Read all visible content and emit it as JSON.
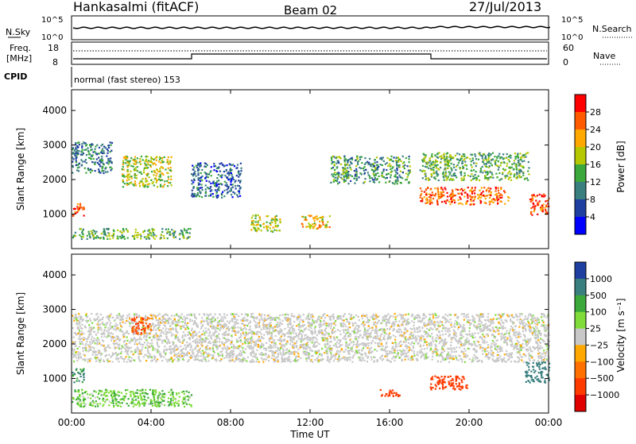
{
  "header": {
    "station": "Hankasalmi (fitACF)",
    "beam": "Beam 02",
    "date": "27/Jul/2013"
  },
  "noise_panel": {
    "left_label": "N.Sky",
    "left_ticks": [
      "10^5",
      "10^0"
    ],
    "right_ticks": [
      "10^5",
      "10^0"
    ],
    "right_label": "N.Search",
    "search_style": "dotted"
  },
  "freq_panel": {
    "left_label_1": "Freq.",
    "left_label_2": "[MHz]",
    "left_ticks": [
      "18",
      "8"
    ],
    "right_ticks": [
      "60",
      "0"
    ],
    "right_label": "Nave",
    "nave_style": "dotted"
  },
  "cpid": {
    "label": "CPID",
    "text": "normal (fast stereo) 153"
  },
  "y_axis": {
    "label": "Slant Range [km]",
    "ticks": [
      1000,
      2000,
      3000,
      4000
    ],
    "range": [
      0,
      4600
    ]
  },
  "x_axis": {
    "label": "Time UT",
    "ticks": [
      "00:00",
      "04:00",
      "08:00",
      "12:00",
      "16:00",
      "20:00",
      "00:00"
    ],
    "range_hours": [
      0,
      24
    ]
  },
  "power_colorbar": {
    "title": "Power [dB]",
    "ticks": [
      "28",
      "24",
      "20",
      "16",
      "12",
      "8",
      "4"
    ],
    "colors": [
      "#ff0000",
      "#ff5a00",
      "#ffa800",
      "#b5c800",
      "#3aa83a",
      "#3a7f7f",
      "#1e3fa0",
      "#0000ff"
    ]
  },
  "velocity_colorbar": {
    "title": "Velocity [m s⁻¹]",
    "ticks": [
      "1000",
      "500",
      "100",
      "25",
      "−25",
      "−100",
      "−500",
      "−1000"
    ],
    "colors": [
      "#1e3fa0",
      "#3a7f7f",
      "#3aa83a",
      "#7fdc3a",
      "#c8c8c8",
      "#ffa800",
      "#ff7000",
      "#ff3a00",
      "#e00000"
    ]
  },
  "chart_data": {
    "type": "heatmap",
    "xlabel": "Time UT",
    "ylabel": "Slant Range [km]",
    "xlim_hours": [
      0,
      24
    ],
    "ylim_km": [
      0,
      4600
    ],
    "power_panel": {
      "units": "dB",
      "regions": [
        {
          "t": [
            0.0,
            0.6
          ],
          "r": [
            950,
            1350
          ],
          "power_db": 28
        },
        {
          "t": [
            0.0,
            2.0
          ],
          "r": [
            2200,
            3100
          ],
          "power_db": 10
        },
        {
          "t": [
            2.5,
            5.0
          ],
          "r": [
            1800,
            2700
          ],
          "power_db": 18
        },
        {
          "t": [
            6.0,
            8.5
          ],
          "r": [
            1500,
            2500
          ],
          "power_db": 8
        },
        {
          "t": [
            9.0,
            10.5
          ],
          "r": [
            500,
            1000
          ],
          "power_db": 18
        },
        {
          "t": [
            11.5,
            13.0
          ],
          "r": [
            600,
            1000
          ],
          "power_db": 20
        },
        {
          "t": [
            13.0,
            17.0
          ],
          "r": [
            1900,
            2700
          ],
          "power_db": 12
        },
        {
          "t": [
            17.5,
            22.0
          ],
          "r": [
            1300,
            1800
          ],
          "power_db": 26
        },
        {
          "t": [
            17.5,
            23.0
          ],
          "r": [
            2000,
            2800
          ],
          "power_db": 14
        },
        {
          "t": [
            23.0,
            24.0
          ],
          "r": [
            1000,
            1600
          ],
          "power_db": 28
        },
        {
          "t": [
            0.0,
            6.0
          ],
          "r": [
            300,
            600
          ],
          "power_db": 14
        }
      ]
    },
    "velocity_panel": {
      "units": "m s^-1",
      "regions": [
        {
          "t": [
            0.0,
            24.0
          ],
          "r": [
            1500,
            2900
          ],
          "velocity": 0
        },
        {
          "t": [
            3.0,
            4.0
          ],
          "r": [
            2300,
            2800
          ],
          "velocity": -300
        },
        {
          "t": [
            15.5,
            16.5
          ],
          "r": [
            500,
            700
          ],
          "velocity": -400
        },
        {
          "t": [
            18.0,
            20.0
          ],
          "r": [
            700,
            1100
          ],
          "velocity": -400
        },
        {
          "t": [
            0.0,
            0.6
          ],
          "r": [
            900,
            1300
          ],
          "velocity": 300
        },
        {
          "t": [
            22.8,
            24.0
          ],
          "r": [
            900,
            1500
          ],
          "velocity": 400
        },
        {
          "t": [
            0.0,
            6.0
          ],
          "r": [
            200,
            700
          ],
          "velocity": 50
        }
      ]
    }
  }
}
